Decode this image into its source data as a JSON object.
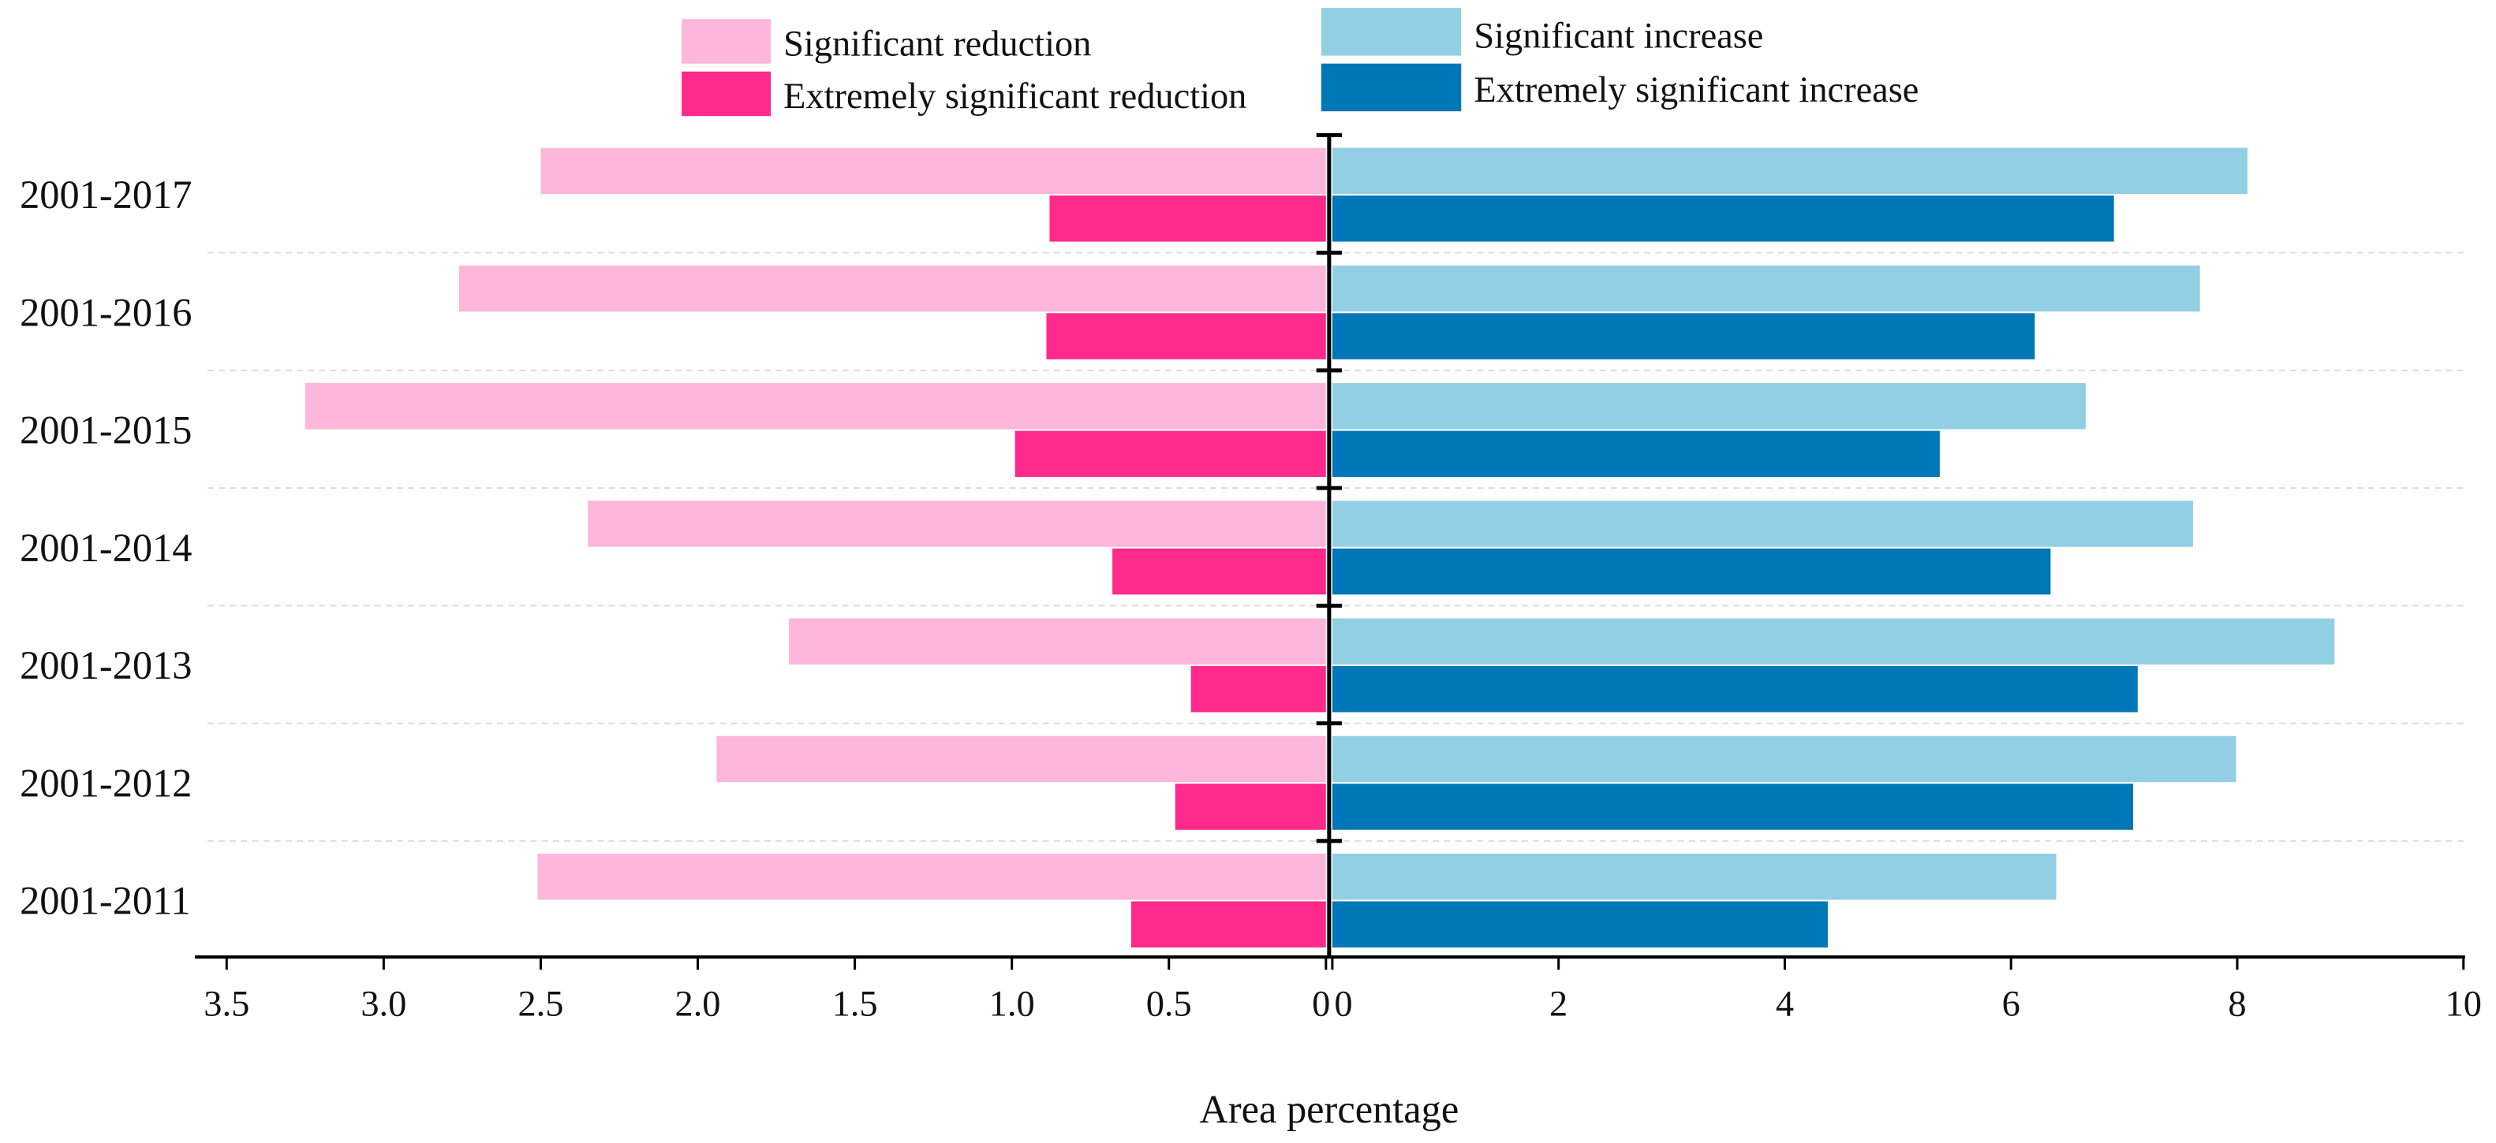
{
  "chart_data": {
    "type": "bar",
    "orientation": "horizontal-diverging",
    "categories": [
      "2001-2017",
      "2001-2016",
      "2001-2015",
      "2001-2014",
      "2001-2013",
      "2001-2012",
      "2001-2011"
    ],
    "series": [
      {
        "name": "Significant reduction",
        "side": "left",
        "color": "#FFB6DB",
        "values": [
          2.5,
          2.76,
          3.25,
          2.35,
          1.71,
          1.94,
          2.51
        ]
      },
      {
        "name": "Extremely significant reduction",
        "side": "left",
        "color": "#FF2A8C",
        "values": [
          0.88,
          0.89,
          0.99,
          0.68,
          0.43,
          0.48,
          0.62
        ]
      },
      {
        "name": "Significant increase",
        "side": "right",
        "color": "#92CFE5",
        "values": [
          8.09,
          7.67,
          6.66,
          7.61,
          8.86,
          7.99,
          6.4
        ]
      },
      {
        "name": "Extremely significant increase",
        "side": "right",
        "color": "#0077B6",
        "values": [
          6.91,
          6.21,
          5.37,
          6.35,
          7.12,
          7.08,
          4.38
        ]
      }
    ],
    "left_axis": {
      "range": [
        3.5,
        0
      ],
      "ticks": [
        "3.5",
        "3.0",
        "2.5",
        "2.0",
        "1.5",
        "1.0",
        "0.5",
        "0"
      ],
      "tick_values": [
        3.5,
        3.0,
        2.5,
        2.0,
        1.5,
        1.0,
        0.5,
        0
      ]
    },
    "right_axis": {
      "range": [
        0,
        10
      ],
      "ticks": [
        "0",
        "2",
        "4",
        "6",
        "8",
        "10"
      ],
      "tick_values": [
        0,
        2,
        4,
        6,
        8,
        10
      ]
    },
    "xlabel": "Area percentage",
    "ylabel": "",
    "title": "",
    "grid": "dashed horizontal separators",
    "legend_position": "top-center"
  }
}
